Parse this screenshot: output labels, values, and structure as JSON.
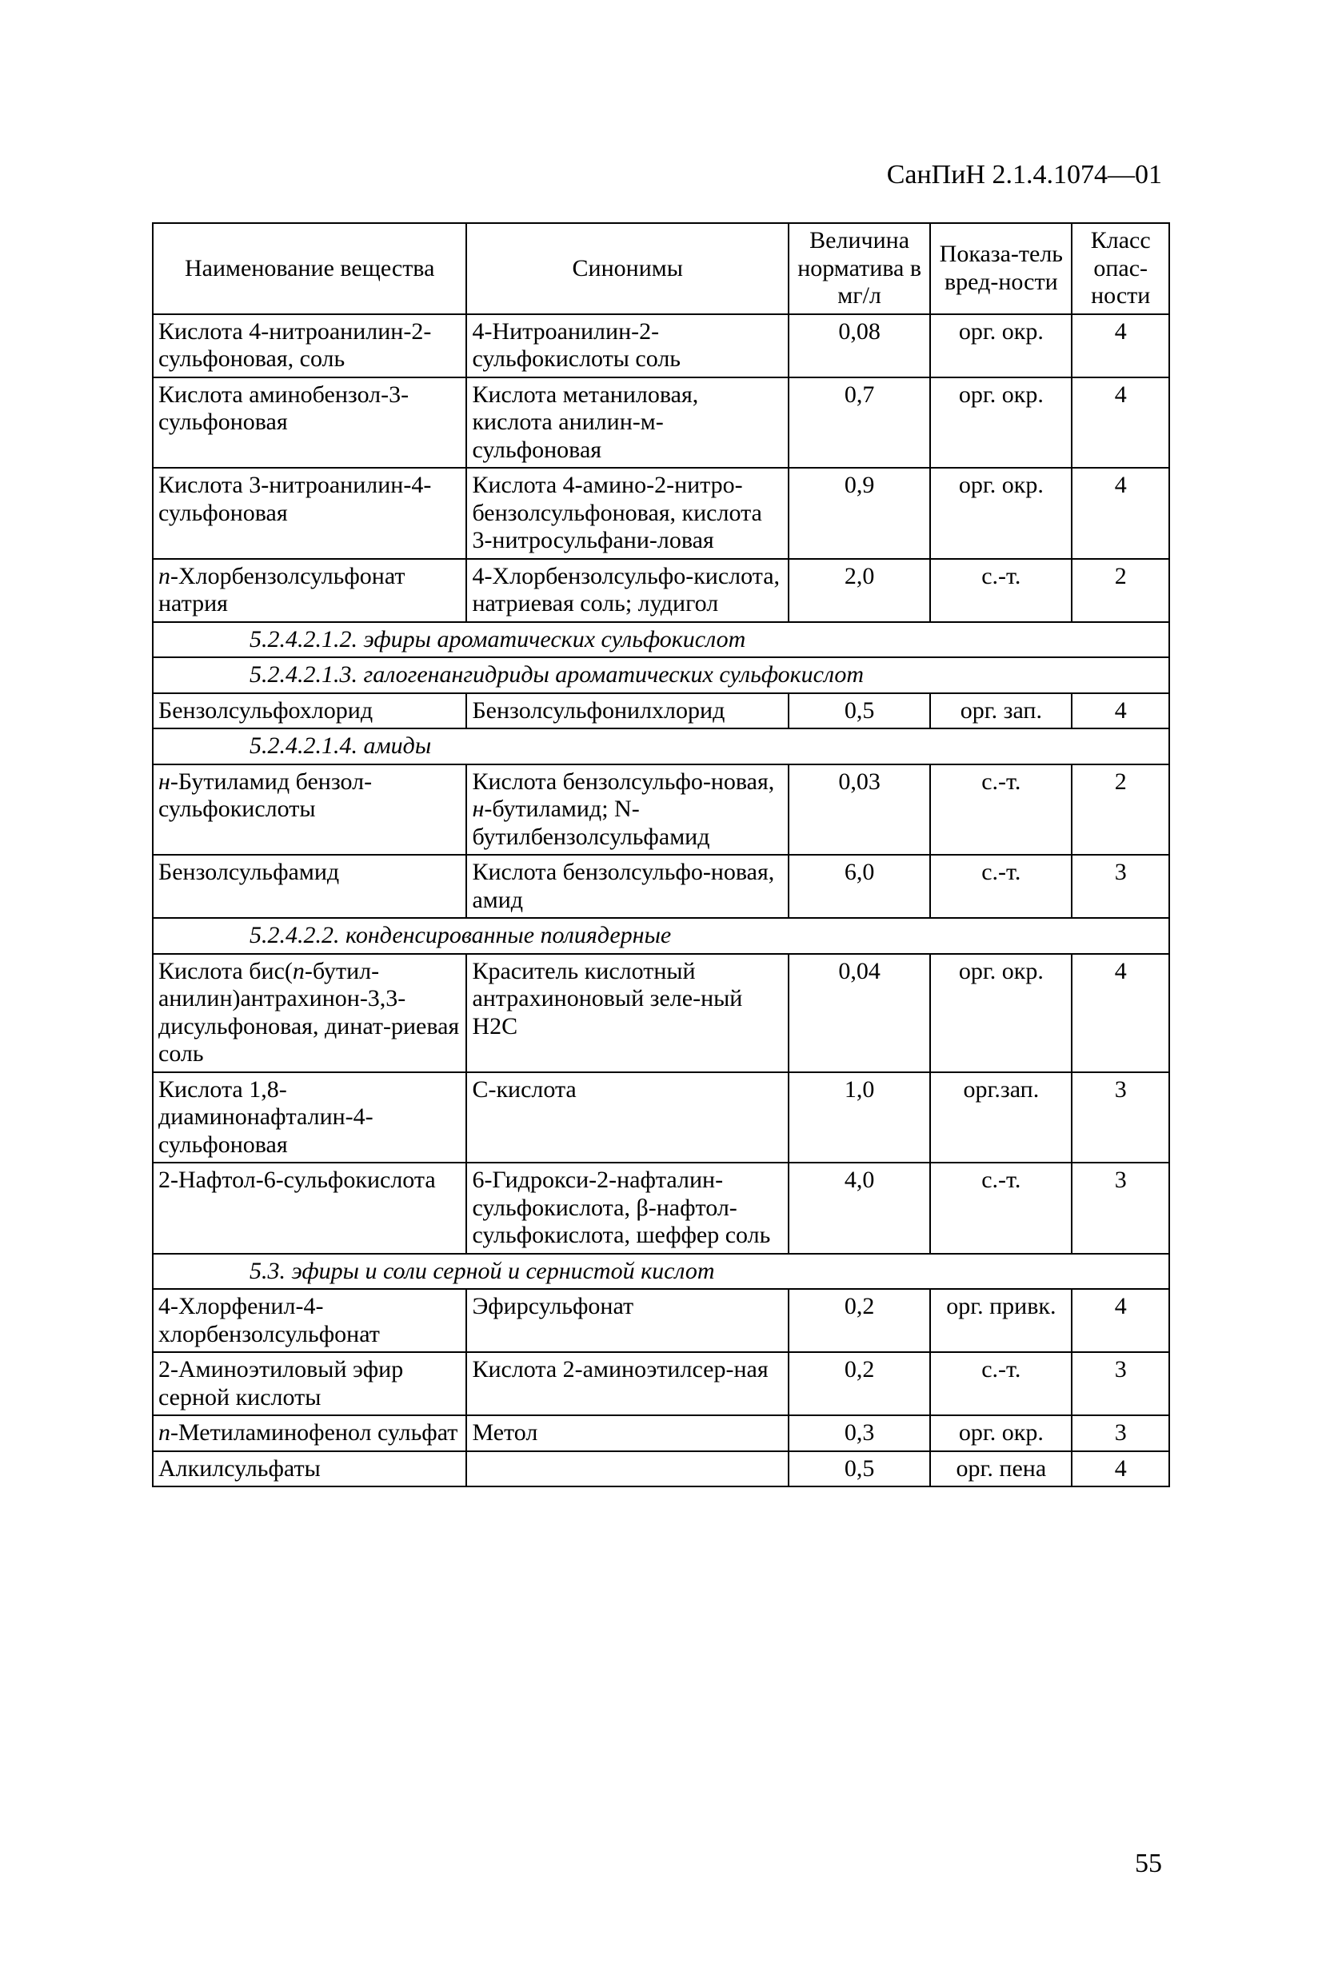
{
  "doc": {
    "header": "СанПиН 2.1.4.1074—01",
    "page_number": "55"
  },
  "table": {
    "columns": {
      "c1": "Наименование вещества",
      "c2": "Синонимы",
      "c3": "Величина норматива в мг/л",
      "c4": "Показа-тель вред-ности",
      "c5": "Класс опас-ности"
    },
    "sections": {
      "s1": "5.2.4.2.1.2. эфиры ароматических сульфокислот",
      "s2": "5.2.4.2.1.3. галогенангидриды ароматических сульфокислот",
      "s3": "5.2.4.2.1.4. амиды",
      "s4": "5.2.4.2.2. конденсированные полиядерные",
      "s5": "5.3. эфиры и соли серной и сернистой кислот"
    },
    "rows": {
      "r1": {
        "name": "Кислота 4-нитроанилин-2-сульфоновая, соль",
        "syn": "4-Нитроанилин-2-сульфокислоты соль",
        "val": "0,08",
        "ind": "орг. окр.",
        "cls": "4"
      },
      "r2": {
        "name": "Кислота аминобензол-3-сульфоновая",
        "syn": "Кислота метаниловая, кислота анилин-м-сульфоновая",
        "val": "0,7",
        "ind": "орг. окр.",
        "cls": "4"
      },
      "r3": {
        "name": "Кислота 3-нитроанилин-4-сульфоновая",
        "syn": "Кислота 4-амино-2-нитро-бензолсульфоновая, кислота 3-нитросульфани-ловая",
        "val": "0,9",
        "ind": "орг. окр.",
        "cls": "4"
      },
      "r4": {
        "name_a": "n",
        "name_b": "-Хлорбензолсульфонат натрия",
        "syn": "4-Хлорбензолсульфо-кислота, натриевая соль; лудигол",
        "val": "2,0",
        "ind": "с.-т.",
        "cls": "2"
      },
      "r5": {
        "name": "Бензолсульфохлорид",
        "syn": "Бензолсульфонилхлорид",
        "val": "0,5",
        "ind": "орг. зап.",
        "cls": "4"
      },
      "r6": {
        "name_a": "н",
        "name_b": "-Бутиламид бензол-сульфокислоты",
        "syn_a": "Кислота бензолсульфо-новая, ",
        "syn_b": "н",
        "syn_c": "-бутиламид; N-бутилбензолсульфамид",
        "val": "0,03",
        "ind": "с.-т.",
        "cls": "2"
      },
      "r7": {
        "name": "Бензолсульфамид",
        "syn": "Кислота бензолсульфо-новая, амид",
        "val": "6,0",
        "ind": "с.-т.",
        "cls": "3"
      },
      "r8": {
        "name_a": "Кислота бис(",
        "name_b": "n",
        "name_c": "-бутил-анилин)антрахинон-3,3-дисульфоновая, динат-риевая соль",
        "syn": "Краситель кислотный антрахиноновый зеле-ный Н2С",
        "val": "0,04",
        "ind": "орг. окр.",
        "cls": "4"
      },
      "r9": {
        "name": "Кислота 1,8-диаминонафталин-4-сульфоновая",
        "syn": "С-кислота",
        "val": "1,0",
        "ind": "орг.зап.",
        "cls": "3"
      },
      "r10": {
        "name": "2-Нафтол-6-сульфокислота",
        "syn": "6-Гидрокси-2-нафталин-сульфокислота, β-нафтол-сульфокислота, шеффер соль",
        "val": "4,0",
        "ind": "с.-т.",
        "cls": "3"
      },
      "r11": {
        "name": "4-Хлорфенил-4-хлорбензолсульфонат",
        "syn": "Эфирсульфонат",
        "val": "0,2",
        "ind": "орг. привк.",
        "cls": "4"
      },
      "r12": {
        "name": "2-Аминоэтиловый эфир серной кислоты",
        "syn": "Кислота 2-аминоэтилсер-ная",
        "val": "0,2",
        "ind": "с.-т.",
        "cls": "3"
      },
      "r13": {
        "name_a": "n",
        "name_b": "-Метиламинофенол сульфат",
        "syn": "Метол",
        "val": "0,3",
        "ind": "орг. окр.",
        "cls": "3"
      },
      "r14": {
        "name": "Алкилсульфаты",
        "syn": "",
        "val": "0,5",
        "ind": "орг. пена",
        "cls": "4"
      }
    }
  }
}
